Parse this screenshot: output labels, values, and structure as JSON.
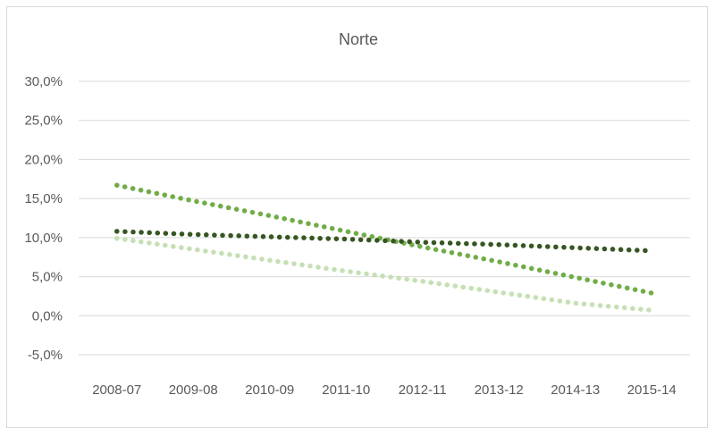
{
  "chart_data": {
    "type": "line",
    "title": "Norte",
    "xlabel": "",
    "ylabel": "",
    "categories": [
      "2008-07",
      "2009-08",
      "2010-09",
      "2011-10",
      "2012-11",
      "2013-12",
      "2014-13",
      "2015-14"
    ],
    "yticks": [
      "30,0%",
      "25,0%",
      "20,0%",
      "15,0%",
      "10,0%",
      "5,0%",
      "0,0%",
      "-5,0%"
    ],
    "ylim": [
      -5,
      30
    ],
    "grid": true,
    "legend": "none",
    "series": [
      {
        "color": "#70ad47",
        "values": [
          16.7,
          14.7,
          12.8,
          10.8,
          8.8,
          6.9,
          4.9,
          2.9
        ]
      },
      {
        "color": "#375623",
        "values": [
          10.8,
          10.4,
          10.1,
          9.8,
          9.4,
          9.1,
          8.7,
          8.3
        ]
      },
      {
        "color": "#c5e0b4",
        "values": [
          9.9,
          8.5,
          7.1,
          5.7,
          4.4,
          3.0,
          1.6,
          0.7
        ]
      }
    ]
  }
}
